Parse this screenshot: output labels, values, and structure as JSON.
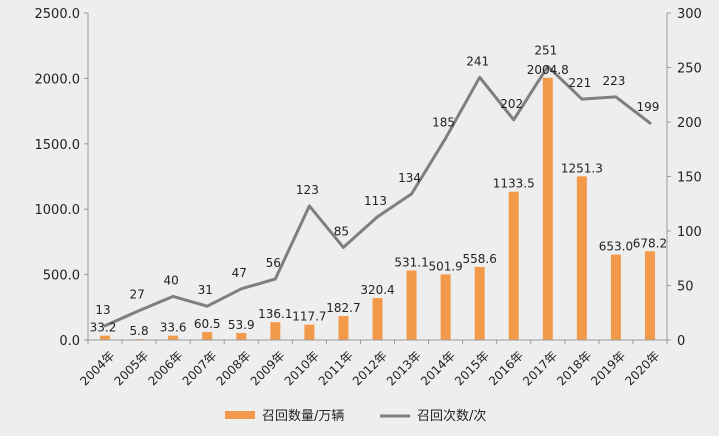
{
  "chart_data": {
    "type": "bar+line",
    "categories": [
      "2004年",
      "2005年",
      "2006年",
      "2007年",
      "2008年",
      "2009年",
      "2010年",
      "2011年",
      "2012年",
      "2013年",
      "2014年",
      "2015年",
      "2016年",
      "2017年",
      "2018年",
      "2019年",
      "2020年"
    ],
    "series": [
      {
        "name": "召回数量/万辆",
        "type": "bar",
        "axis": "left",
        "color": "#f29a4a",
        "values": [
          33.2,
          5.8,
          33.6,
          60.5,
          53.9,
          136.1,
          117.7,
          182.7,
          320.4,
          531.1,
          501.9,
          558.6,
          1133.5,
          2004.8,
          1251.3,
          653.0,
          678.2
        ],
        "labels": [
          "33.2",
          "5.8",
          "33.6",
          "60.5",
          "53.9",
          "136.1",
          "117.7",
          "182.7",
          "320.4",
          "531.1",
          "501.9",
          "558.6",
          "1133.5",
          "2004.8",
          "1251.3",
          "653.0",
          "678.2"
        ]
      },
      {
        "name": "召回次数/次",
        "type": "line",
        "axis": "right",
        "color": "#7f7f7f",
        "values": [
          13,
          27,
          40,
          31,
          47,
          56,
          123,
          85,
          113,
          134,
          185,
          241,
          202,
          251,
          221,
          223,
          199
        ],
        "labels": [
          "13",
          "27",
          "40",
          "31",
          "47",
          "56",
          "123",
          "85",
          "113",
          "134",
          "185",
          "241",
          "202",
          "251",
          "221",
          "223",
          "199"
        ]
      }
    ],
    "left_axis": {
      "ylim": [
        0,
        2500
      ],
      "ticks": [
        "0.0",
        "500.0",
        "1000.0",
        "1500.0",
        "2000.0",
        "2500.0"
      ]
    },
    "right_axis": {
      "ylim": [
        0,
        300
      ],
      "ticks": [
        "0",
        "50",
        "100",
        "150",
        "200",
        "250",
        "300"
      ]
    },
    "grid": false,
    "legend_position": "bottom",
    "legend": [
      "召回数量/万辆",
      "召回次数/次"
    ]
  }
}
